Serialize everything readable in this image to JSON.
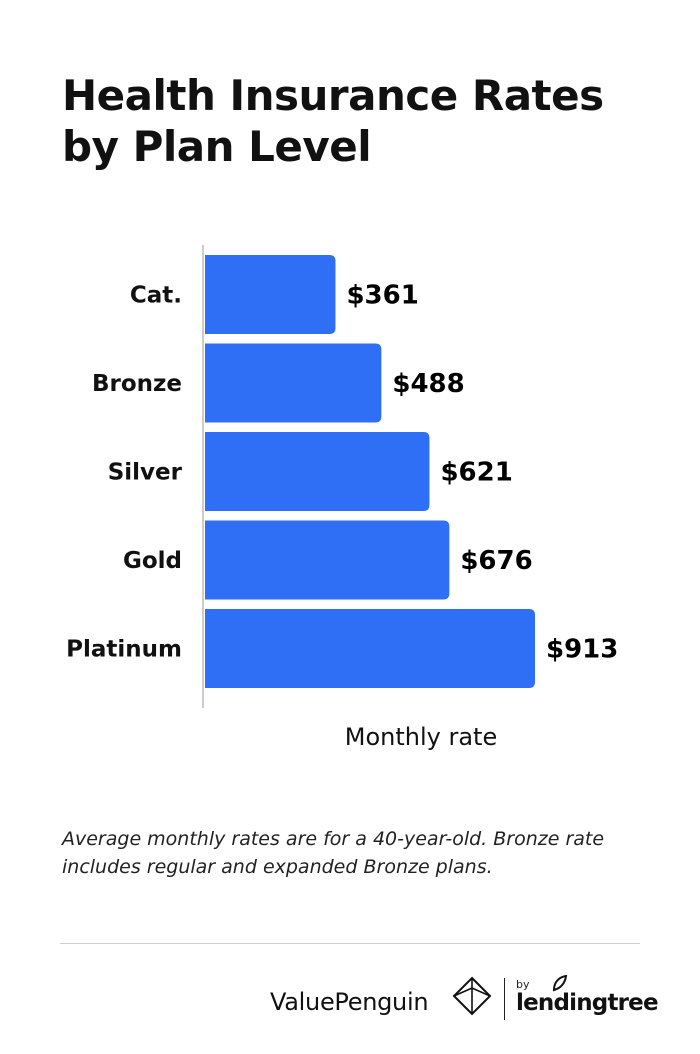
{
  "title": "Health Insurance Rates by Plan Level",
  "footnote": "Average monthly rates are for a 40-year-old. Bronze rate includes regular and expanded Bronze plans.",
  "colors": {
    "bar": "#2f6ff5",
    "axis": "#cccccc",
    "divider": "#cfcfcf"
  },
  "chart_data": {
    "type": "bar",
    "orientation": "horizontal",
    "categories": [
      "Cat.",
      "Bronze",
      "Silver",
      "Gold",
      "Platinum"
    ],
    "values": [
      361,
      488,
      621,
      676,
      913
    ],
    "value_labels": [
      "$361",
      "$488",
      "$621",
      "$676",
      "$913"
    ],
    "title": "Health Insurance Rates by Plan Level",
    "xlabel": "Monthly rate",
    "ylabel": "",
    "xlim": [
      0,
      913
    ],
    "grid": false,
    "legend": "none"
  },
  "footer": {
    "brand": "ValuePenguin",
    "by": "by",
    "partner": "lendingtree",
    "brand_icon": "diamond-penguin-icon",
    "partner_icon": "leaf-icon"
  }
}
